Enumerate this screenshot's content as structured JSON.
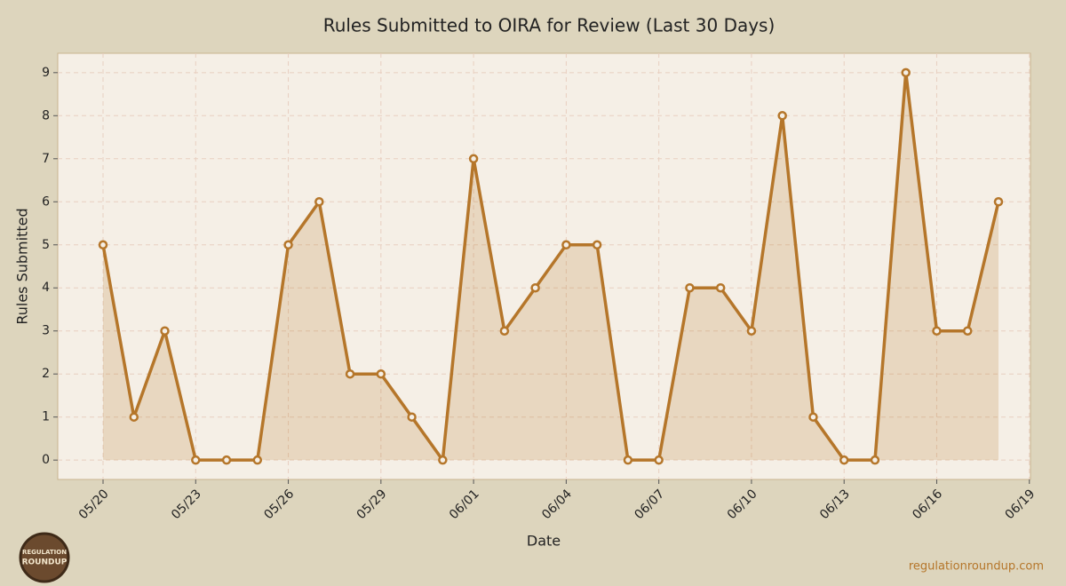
{
  "chart_data": {
    "type": "line",
    "title": "Rules Submitted to OIRA for Review (Last 30 Days)",
    "x_label": "Date",
    "y_label": "Rules Submitted",
    "x": [
      "05/20",
      "05/21",
      "05/22",
      "05/23",
      "05/24",
      "05/25",
      "05/26",
      "05/27",
      "05/28",
      "05/29",
      "05/30",
      "05/31",
      "06/01",
      "06/02",
      "06/03",
      "06/04",
      "06/05",
      "06/06",
      "06/07",
      "06/08",
      "06/09",
      "06/10",
      "06/11",
      "06/12",
      "06/13",
      "06/14",
      "06/15",
      "06/16",
      "06/17",
      "06/18"
    ],
    "series": [
      {
        "name": "Rules Submitted",
        "color": "#b5762a",
        "values": [
          5,
          1,
          3,
          0,
          0,
          0,
          5,
          6,
          2,
          2,
          1,
          0,
          7,
          3,
          4,
          5,
          5,
          0,
          0,
          4,
          4,
          3,
          8,
          1,
          0,
          0,
          9,
          3,
          3,
          6
        ]
      }
    ],
    "xticks": [
      "05/20",
      "05/23",
      "05/26",
      "05/29",
      "06/01",
      "06/04",
      "06/07",
      "06/10",
      "06/13",
      "06/16",
      "06/19"
    ],
    "ylim": [
      -0.45,
      9.45
    ],
    "yticks": [
      0,
      1,
      2,
      3,
      4,
      5,
      6,
      7,
      8,
      9
    ],
    "grid": true,
    "fill": true
  },
  "footer": "regulationroundup.com",
  "logo": [
    "REGULATION",
    "ROUNDUP"
  ]
}
